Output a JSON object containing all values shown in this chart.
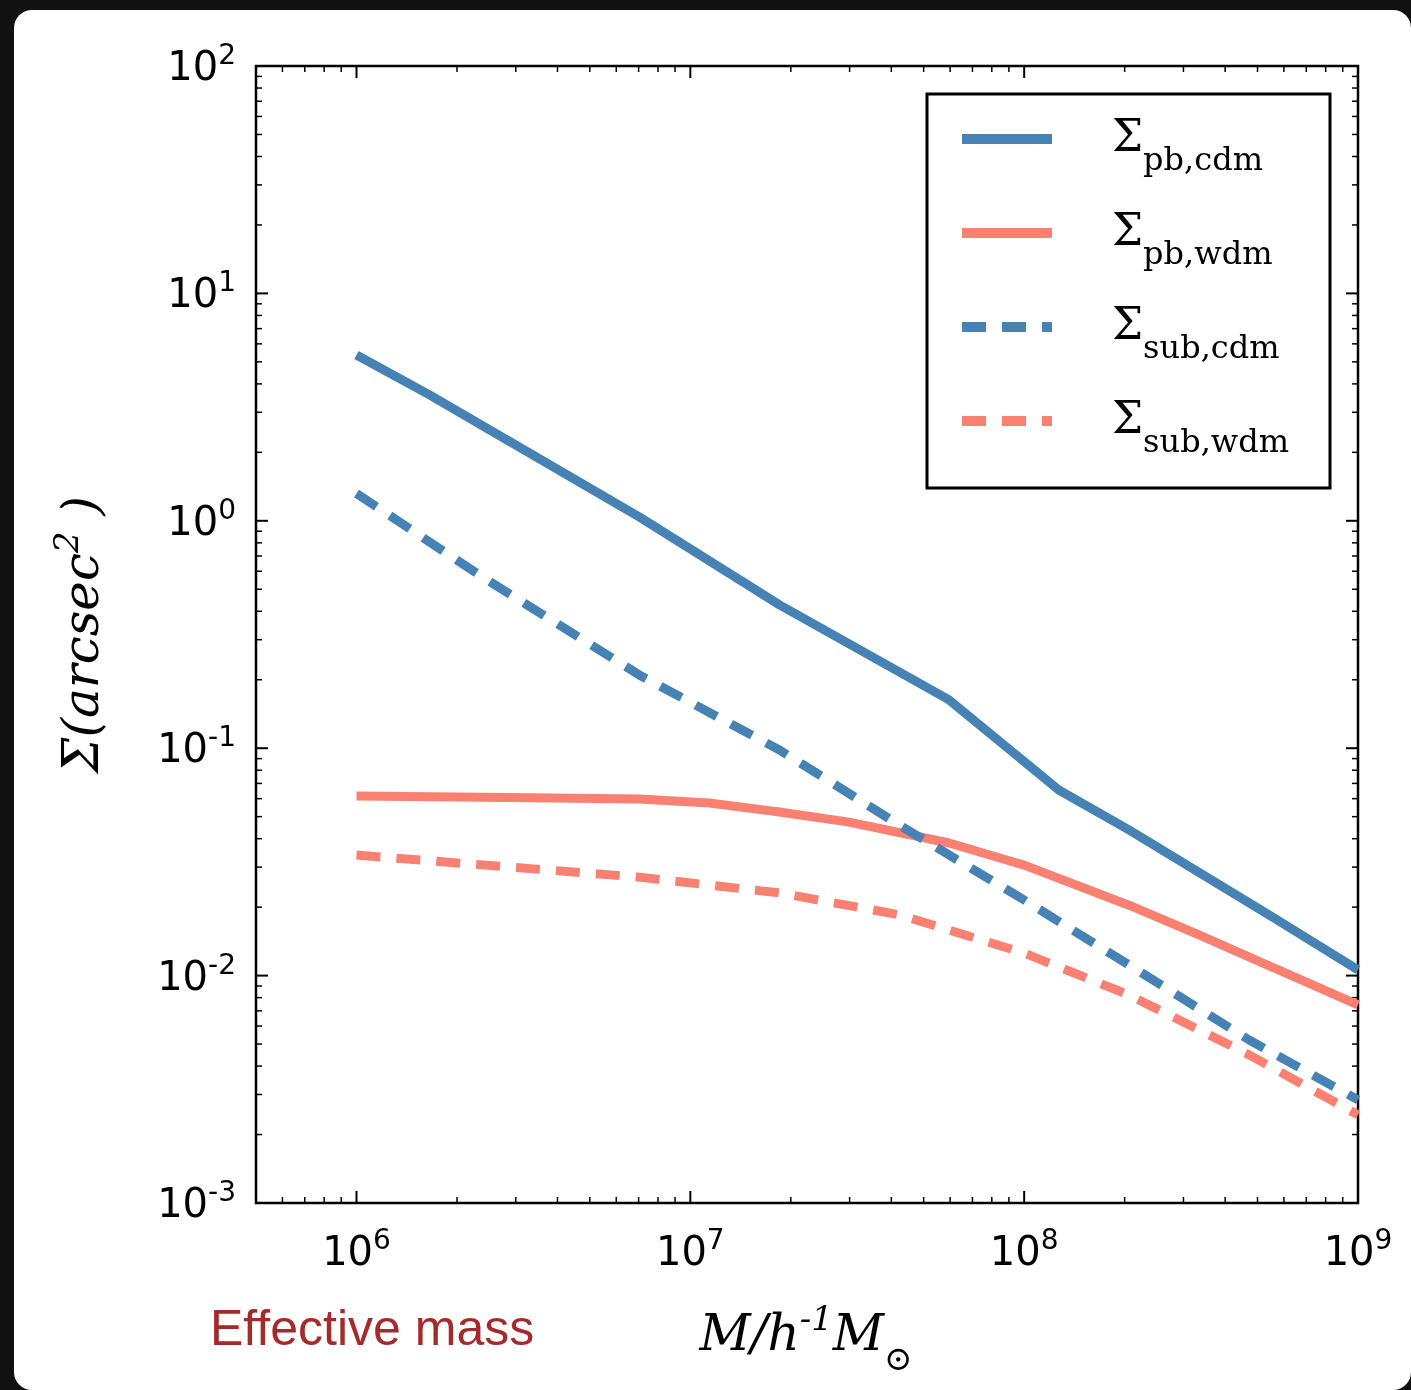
{
  "chart_data": {
    "type": "line",
    "xlabel": "M/h$^{-1}$M$_{⊙}$",
    "ylabel": "Σ(arcsec$^{2}$ )",
    "log": "xy",
    "grid": false,
    "legend": "top right",
    "xlim": [
      500000,
      1000000000
    ],
    "ylim": [
      0.001,
      100
    ],
    "xticks": [
      {
        "value": 1000000,
        "label": "10$^{6}$"
      },
      {
        "value": 10000000,
        "label": "10$^{7}$"
      },
      {
        "value": 100000000,
        "label": "10$^{8}$"
      },
      {
        "value": 1000000000,
        "label": "10$^{9}$"
      }
    ],
    "yticks": [
      {
        "value": 0.001,
        "label": "10$^{-3}$"
      },
      {
        "value": 0.01,
        "label": "10$^{-2}$"
      },
      {
        "value": 0.1,
        "label": "10$^{-1}$"
      },
      {
        "value": 1,
        "label": "10$^{0}$"
      },
      {
        "value": 10,
        "label": "10$^{1}$"
      },
      {
        "value": 100,
        "label": "10$^{2}$"
      }
    ],
    "annotations": [
      "Effective mass"
    ],
    "series": [
      {
        "name": "Σ$_{pb,cdm}$",
        "color": "#4682b4",
        "line_style": "solid",
        "x": [
          1000000,
          1660000,
          7030000,
          18500000,
          59600000,
          127000000,
          206000000,
          541000000,
          1000000000
        ],
        "values": [
          5.36,
          3.57,
          1.04,
          0.427,
          0.163,
          0.0655,
          0.0437,
          0.0185,
          0.0106
        ]
      },
      {
        "name": "Σ$_{pb,wdm}$",
        "color": "#fa8072",
        "line_style": "solid",
        "x": [
          1000000,
          7030000,
          11400000,
          18500000,
          29900000,
          59600000,
          100000000,
          206000000,
          334000000,
          1000000000
        ],
        "values": [
          0.0617,
          0.0598,
          0.0574,
          0.0524,
          0.0473,
          0.0383,
          0.0306,
          0.0204,
          0.0151,
          0.00743
        ]
      },
      {
        "name": "Σ$_{sub,cdm}$",
        "color": "#4682b4",
        "line_style": "dashed",
        "x": [
          1000000,
          2330000,
          7030000,
          18500000,
          42300000,
          100000000,
          206000000,
          472000000,
          1000000000
        ],
        "values": [
          1.32,
          0.578,
          0.21,
          0.0982,
          0.0459,
          0.0215,
          0.01114,
          0.00521,
          0.00284
        ]
      },
      {
        "name": "Σ$_{sub,wdm}$",
        "color": "#fa8072",
        "line_style": "dashed",
        "x": [
          1000000,
          7030000,
          18500000,
          42300000,
          100000000,
          206000000,
          472000000,
          1000000000
        ],
        "values": [
          0.0339,
          0.0271,
          0.0231,
          0.0185,
          0.01256,
          0.00822,
          0.00448,
          0.00244
        ]
      }
    ]
  }
}
